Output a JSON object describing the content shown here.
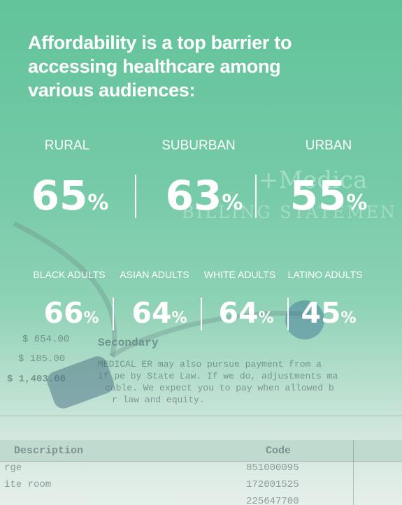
{
  "title": "Affordability is a top barrier to accessing healthcare among various audiences:",
  "percent_sign": "%",
  "location_stats": [
    {
      "label": "RURAL",
      "value": 65
    },
    {
      "label": "SUBURBAN",
      "value": 63
    },
    {
      "label": "URBAN",
      "value": 55
    }
  ],
  "race_stats": [
    {
      "label": "BLACK ADULTS",
      "value": 66
    },
    {
      "label": "ASIAN ADULTS",
      "value": 64
    },
    {
      "label": "WHITE ADULTS",
      "value": 64
    },
    {
      "label": "LATINO ADULTS",
      "value": 45
    }
  ],
  "colors": {
    "background_top": "#62c39a",
    "text": "#ffffff"
  }
}
